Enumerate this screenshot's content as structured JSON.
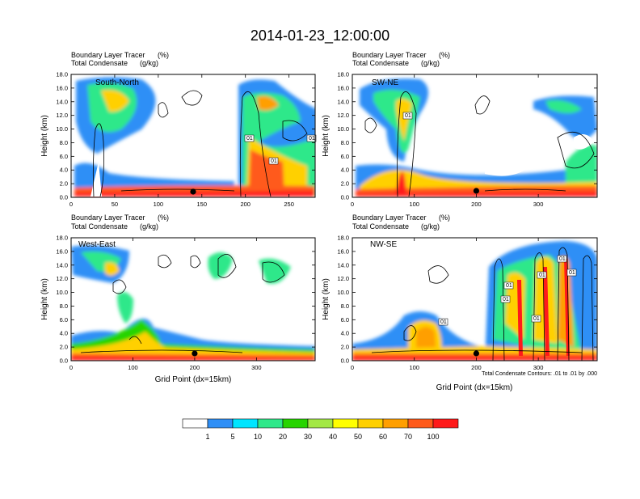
{
  "page": {
    "title": "2014-01-23_12:00:00",
    "colorbar_labels": [
      "1",
      "5",
      "10",
      "20",
      "30",
      "40",
      "50",
      "60",
      "70",
      "100"
    ],
    "colorbar_colors": [
      "#ffffff",
      "#2f8ff6",
      "#00e5ff",
      "#2fe88a",
      "#27d400",
      "#a3e845",
      "#ffff00",
      "#ffd000",
      "#ff9f00",
      "#ff5a1a",
      "#ff1a1a"
    ],
    "contour_footnote": "Total Condensate Contours: .01 to .01 by .000",
    "contour_label": "01",
    "cross_section_marker": "black dot at Grid Point 140–200 near surface"
  },
  "chart_data": [
    {
      "type": "heatmap",
      "panel": "South-North",
      "title_left_1": "Boundary Layer Tracer",
      "title_right_1": "(%)",
      "title_left_2": "Total Condensate",
      "title_right_2": "(g/kg)",
      "xlabel": "",
      "ylabel": "Height (km)",
      "xlim": [
        0,
        280
      ],
      "ylim": [
        0,
        18
      ],
      "xticks": [
        "0",
        "50",
        "100",
        "150",
        "200",
        "250"
      ],
      "yticks": [
        "0.0",
        "2.0",
        "4.0",
        "6.0",
        "8.0",
        "10.0",
        "12.0",
        "14.0",
        "16.0",
        "18.0"
      ],
      "marker_x": 140,
      "contour_labels": [
        "01",
        "01",
        "01"
      ],
      "fill_levels": "Boundary Layer Tracer 1–100 %"
    },
    {
      "type": "heatmap",
      "panel": "SW-NE",
      "title_left_1": "Boundary Layer Tracer",
      "title_right_1": "(%)",
      "title_left_2": "Total Condensate",
      "title_right_2": "(g/kg)",
      "xlabel": "",
      "ylabel": "Height (km)",
      "xlim": [
        0,
        395
      ],
      "ylim": [
        0,
        18
      ],
      "xticks": [
        "0",
        "100",
        "200",
        "300"
      ],
      "yticks": [
        "0.0",
        "2.0",
        "4.0",
        "6.0",
        "8.0",
        "10.0",
        "12.0",
        "14.0",
        "16.0",
        "18.0"
      ],
      "marker_x": 200,
      "contour_labels": [
        "01"
      ],
      "fill_levels": "Boundary Layer Tracer 1–100 %"
    },
    {
      "type": "heatmap",
      "panel": "West-East",
      "title_left_1": "Boundary Layer Tracer",
      "title_right_1": "(%)",
      "title_left_2": "Total Condensate",
      "title_right_2": "(g/kg)",
      "xlabel": "Grid Point (dx=15km)",
      "ylabel": "Height (km)",
      "xlim": [
        0,
        395
      ],
      "ylim": [
        0,
        18
      ],
      "xticks": [
        "0",
        "100",
        "200",
        "300"
      ],
      "yticks": [
        "0.0",
        "2.0",
        "4.0",
        "6.0",
        "8.0",
        "10.0",
        "12.0",
        "14.0",
        "16.0",
        "18.0"
      ],
      "marker_x": 200,
      "contour_labels": [],
      "fill_levels": "Boundary Layer Tracer 1–100 %"
    },
    {
      "type": "heatmap",
      "panel": "NW-SE",
      "title_left_1": "Boundary Layer Tracer",
      "title_right_1": "(%)",
      "title_left_2": "Total Condensate",
      "title_right_2": "(g/kg)",
      "xlabel": "Grid Point (dx=15km)",
      "ylabel": "Height (km)",
      "xlim": [
        0,
        395
      ],
      "ylim": [
        0,
        18
      ],
      "xticks": [
        "0",
        "100",
        "200",
        "300"
      ],
      "yticks": [
        "0.0",
        "2.0",
        "4.0",
        "6.0",
        "8.0",
        "10.0",
        "12.0",
        "14.0",
        "16.0",
        "18.0"
      ],
      "marker_x": 200,
      "contour_labels": [
        "01",
        "01",
        "01",
        "01",
        "01",
        "01",
        "01"
      ],
      "fill_levels": "Boundary Layer Tracer 1–100 %"
    }
  ]
}
